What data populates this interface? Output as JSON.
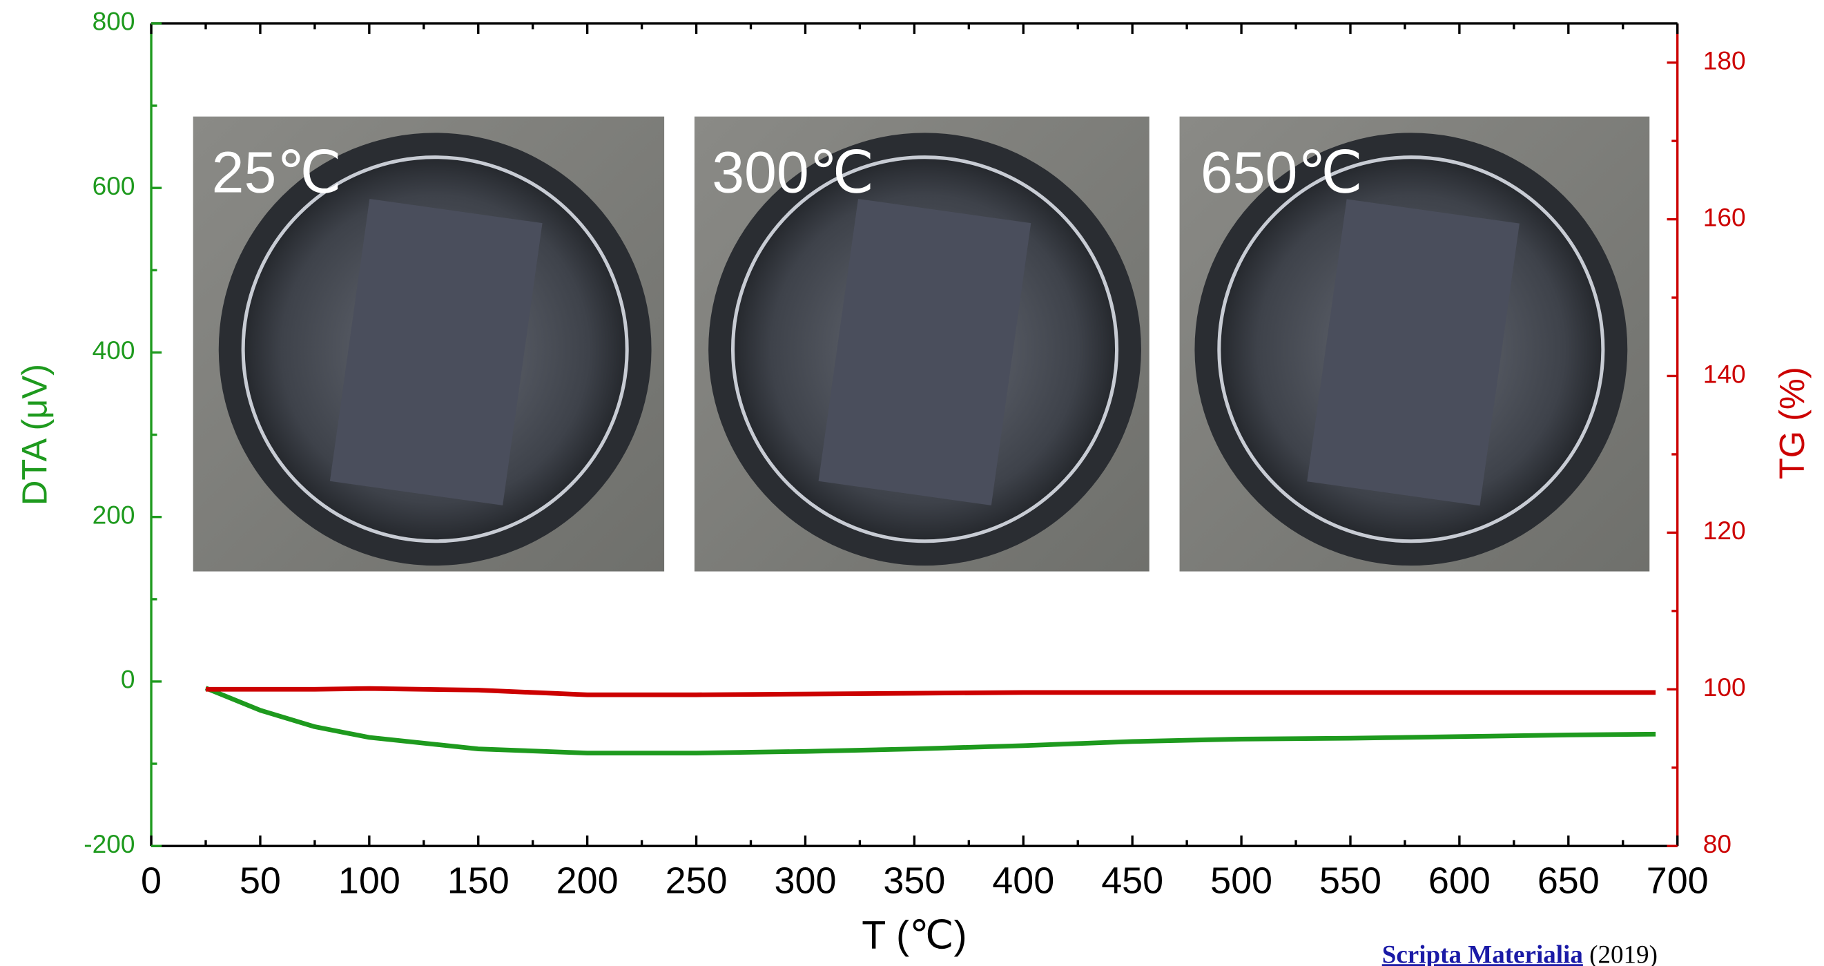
{
  "chart_data": {
    "type": "line",
    "x_label": "T (℃)",
    "y_label": "DTA (μV)",
    "y2_label": "TG (%)",
    "annotations": [
      "25℃",
      "300℃",
      "650℃"
    ],
    "source": {
      "journal": "Scripta Materialia",
      "year": "(2019)"
    },
    "x": [
      25,
      50,
      75,
      100,
      150,
      200,
      250,
      300,
      350,
      400,
      450,
      500,
      550,
      600,
      650,
      690
    ],
    "series": [
      {
        "color": "#1e9a1e",
        "values": [
          -8,
          -35,
          -55,
          -68,
          -82,
          -87,
          -87,
          -85,
          -82,
          -78,
          -73,
          -70,
          -69,
          -67,
          -65,
          -64
        ]
      },
      {
        "color": "#cc0000",
        "axis": "y2",
        "values": [
          100,
          100,
          100,
          100.1,
          99.9,
          99.3,
          99.3,
          99.4,
          99.5,
          99.6,
          99.6,
          99.6,
          99.6,
          99.6,
          99.6,
          99.6
        ]
      }
    ],
    "xlim": [
      0,
      700
    ],
    "xticks": [
      0,
      50,
      100,
      150,
      200,
      250,
      300,
      350,
      400,
      450,
      500,
      550,
      600,
      650,
      700
    ],
    "ylim": [
      -200,
      800
    ],
    "yticks": [
      -200,
      0,
      200,
      400,
      600,
      800
    ],
    "y2lim": [
      80,
      185
    ],
    "y2ticks": [
      80,
      100,
      120,
      140,
      160,
      180
    ],
    "x_axis_color": "#000000",
    "y_axis_color": "#1e9a1e",
    "y2_axis_color": "#cc0000"
  }
}
